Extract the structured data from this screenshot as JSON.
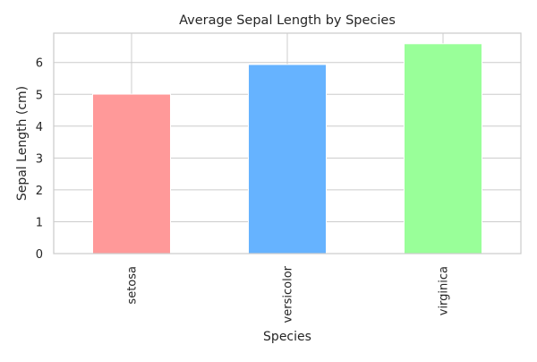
{
  "chart_data": {
    "type": "bar",
    "title": "Average Sepal Length by Species",
    "xlabel": "Species",
    "ylabel": "Sepal Length (cm)",
    "categories": [
      "setosa",
      "versicolor",
      "virginica"
    ],
    "values": [
      5.006,
      5.936,
      6.588
    ],
    "colors": [
      "#ff9999",
      "#66b3ff",
      "#99ff99"
    ],
    "ylim": [
      0,
      6.92
    ],
    "yticks": [
      0,
      1,
      2,
      3,
      4,
      5,
      6
    ],
    "grid": true,
    "legend": "none"
  }
}
